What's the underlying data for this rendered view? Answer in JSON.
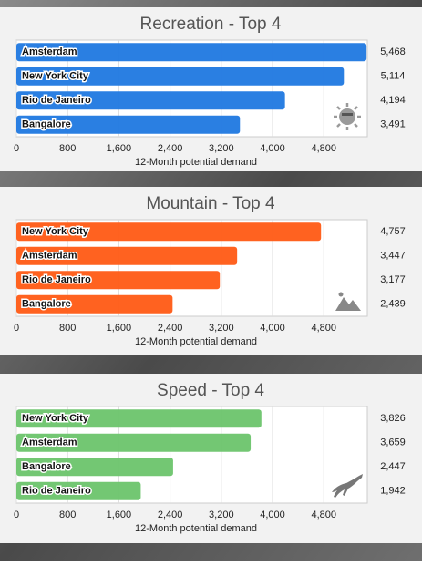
{
  "chart_data": [
    {
      "type": "bar",
      "orientation": "horizontal",
      "title": "Recreation - Top 4",
      "x_label": "12-Month potential demand",
      "categories": [
        "Amsterdam",
        "New York City",
        "Rio de Janeiro",
        "Bangalore"
      ],
      "values": [
        5468,
        5114,
        4194,
        3491
      ],
      "value_labels": [
        "5,468",
        "5,114",
        "4,194",
        "3,491"
      ],
      "color": "#1f78e0",
      "xlim": [
        0,
        5480
      ],
      "xticks": [
        0,
        800,
        {
          "value": 1600,
          "label": "1,600"
        },
        {
          "value": 2400,
          "label": "2,400"
        },
        {
          "value": 3200,
          "label": "3,200"
        },
        {
          "value": 4000,
          "label": "4,000"
        },
        {
          "value": 4800,
          "label": "4,800"
        }
      ],
      "grid": true
    },
    {
      "type": "bar",
      "orientation": "horizontal",
      "title": "Mountain - Top 4",
      "x_label": "12-Month potential demand",
      "categories": [
        "New York City",
        "Amsterdam",
        "Rio de Janeiro",
        "Bangalore"
      ],
      "values": [
        4757,
        3447,
        3177,
        2439
      ],
      "value_labels": [
        "4,757",
        "3,447",
        "3,177",
        "2,439"
      ],
      "color": "#ff5a14",
      "xlim": [
        0,
        5480
      ],
      "xticks": [
        0,
        800,
        {
          "value": 1600,
          "label": "1,600"
        },
        {
          "value": 2400,
          "label": "2,400"
        },
        {
          "value": 3200,
          "label": "3,200"
        },
        {
          "value": 4000,
          "label": "4,000"
        },
        {
          "value": 4800,
          "label": "4,800"
        }
      ],
      "grid": true
    },
    {
      "type": "bar",
      "orientation": "horizontal",
      "title": "Speed - Top 4",
      "x_label": "12-Month potential demand",
      "categories": [
        "New York City",
        "Amsterdam",
        "Bangalore",
        "Rio de Janeiro"
      ],
      "values": [
        3826,
        3659,
        2447,
        1942
      ],
      "value_labels": [
        "3,826",
        "3,659",
        "2,447",
        "1,942"
      ],
      "color": "#6cc46c",
      "xlim": [
        0,
        5480
      ],
      "xticks": [
        0,
        800,
        {
          "value": 1600,
          "label": "1,600"
        },
        {
          "value": 2400,
          "label": "2,400"
        },
        {
          "value": 3200,
          "label": "3,200"
        },
        {
          "value": 4000,
          "label": "4,000"
        },
        {
          "value": 4800,
          "label": "4,800"
        }
      ],
      "grid": true
    }
  ]
}
